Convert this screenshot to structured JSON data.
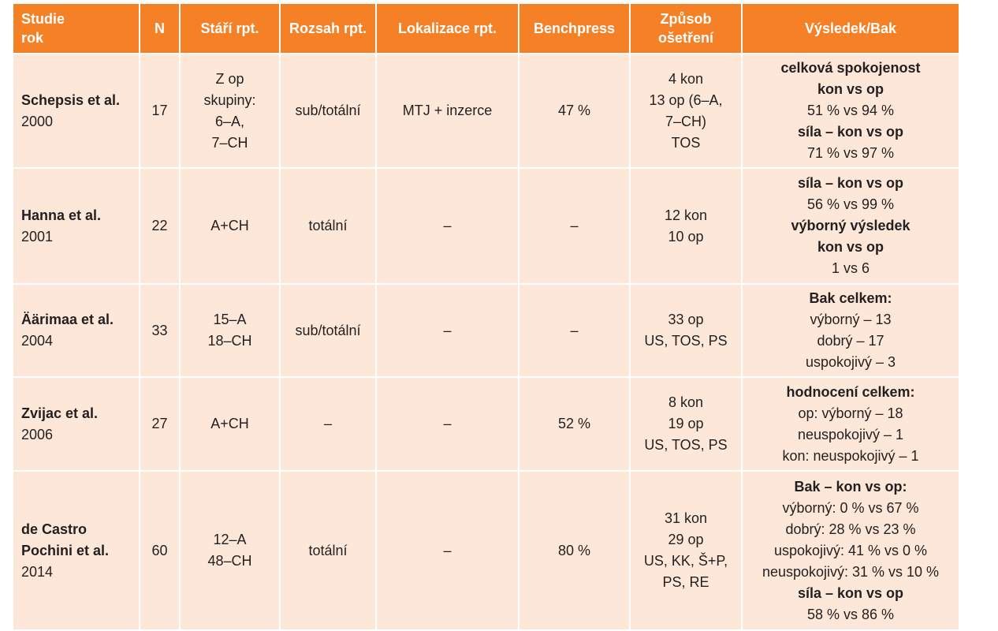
{
  "headers": {
    "study": [
      "Studie",
      "rok"
    ],
    "n": "N",
    "age": "Stáří rpt.",
    "extent": "Rozsah rpt.",
    "location": "Lokalizace rpt.",
    "benchpress": "Benchpress",
    "treatment": [
      "Způsob",
      "ošetření"
    ],
    "result": "Výsledek/Bak"
  },
  "rows": [
    {
      "name": [
        "Schepsis et al."
      ],
      "year": "2000",
      "n": "17",
      "age": [
        "Z op",
        "skupiny:",
        "6–A,",
        "7–CH"
      ],
      "extent": [
        "sub/totální"
      ],
      "location": [
        "MTJ + inzerce"
      ],
      "benchpress": [
        "47 %"
      ],
      "treatment": [
        "4 kon",
        "13 op (6–A,",
        "7–CH)",
        "TOS"
      ],
      "result": [
        {
          "text": "celková spokojenost",
          "bold": true
        },
        {
          "text": "kon vs op",
          "bold": true
        },
        {
          "text": "51 % vs 94 %",
          "bold": false
        },
        {
          "text": "síla – kon vs op",
          "bold": true
        },
        {
          "text": "71 % vs 97 %",
          "bold": false
        }
      ]
    },
    {
      "name": [
        "Hanna et al."
      ],
      "year": "2001",
      "n": "22",
      "age": [
        "A+CH"
      ],
      "extent": [
        "totální"
      ],
      "location": [
        "–"
      ],
      "benchpress": [
        "–"
      ],
      "treatment": [
        "12 kon",
        "10 op"
      ],
      "result": [
        {
          "text": "síla – kon vs op",
          "bold": true
        },
        {
          "text": "56 % vs 99 %",
          "bold": false
        },
        {
          "text": "výborný výsledek",
          "bold": true
        },
        {
          "text": "kon vs op",
          "bold": true
        },
        {
          "text": "1 vs 6",
          "bold": false
        }
      ]
    },
    {
      "name": [
        "Äärimaa et al."
      ],
      "year": "2004",
      "n": "33",
      "age": [
        "15–A",
        "18–CH"
      ],
      "extent": [
        "sub/totální"
      ],
      "location": [
        "–"
      ],
      "benchpress": [
        "–"
      ],
      "treatment": [
        "33 op",
        "US, TOS, PS"
      ],
      "result": [
        {
          "text": "Bak celkem:",
          "bold": true
        },
        {
          "text": "výborný – 13",
          "bold": false
        },
        {
          "text": "dobrý – 17",
          "bold": false
        },
        {
          "text": "uspokojivý – 3",
          "bold": false
        }
      ]
    },
    {
      "name": [
        "Zvijac et al."
      ],
      "year": "2006",
      "n": "27",
      "age": [
        "A+CH"
      ],
      "extent": [
        "–"
      ],
      "location": [
        "–"
      ],
      "benchpress": [
        "52 %"
      ],
      "treatment": [
        "8 kon",
        "19 op",
        "US, TOS, PS"
      ],
      "result": [
        {
          "text": "hodnocení celkem:",
          "bold": true
        },
        {
          "text": "op: výborný – 18",
          "bold": false
        },
        {
          "text": "neuspokojivý – 1",
          "bold": false
        },
        {
          "text": "kon: neuspokojivý – 1",
          "bold": false
        }
      ]
    },
    {
      "name": [
        "de Castro",
        "Pochini et al."
      ],
      "year": "2014",
      "n": "60",
      "age": [
        "12–A",
        "48–CH"
      ],
      "extent": [
        "totální"
      ],
      "location": [
        "–"
      ],
      "benchpress": [
        "80 %"
      ],
      "treatment": [
        "31 kon",
        "29 op",
        "US, KK, Š+P,",
        "PS, RE"
      ],
      "result": [
        {
          "text": "Bak – kon vs op:",
          "bold": true
        },
        {
          "text": "výborný: 0 % vs 67 %",
          "bold": false
        },
        {
          "text": "dobrý: 28 % vs 23 %",
          "bold": false
        },
        {
          "text": "uspokojivý: 41 % vs 0 %",
          "bold": false
        },
        {
          "text": "neuspokojivý: 31 % vs 10 %",
          "bold": false
        },
        {
          "text": "síla – kon vs op",
          "bold": true
        },
        {
          "text": "58 % vs 86 %",
          "bold": false
        }
      ]
    }
  ]
}
